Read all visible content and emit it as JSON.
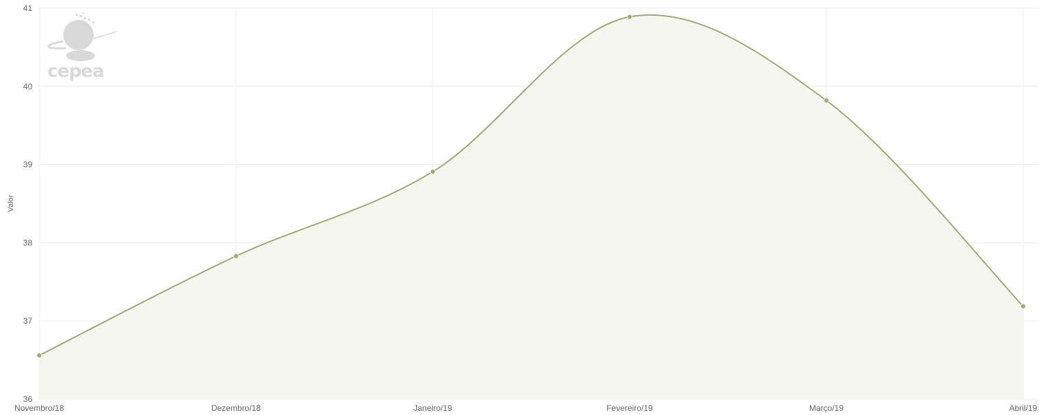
{
  "chart_data": {
    "type": "area",
    "smoothing": "spline",
    "title": "",
    "xlabel": "",
    "ylabel": "Valor",
    "categories": [
      "Novembro/18",
      "Dezembro/18",
      "Janeiro/19",
      "Fevereiro/19",
      "Março/19",
      "Abril/19"
    ],
    "series": [
      {
        "values": [
          36.56,
          37.83,
          38.91,
          40.89,
          39.82,
          37.19
        ]
      }
    ],
    "ylim": [
      36,
      41
    ],
    "yticks": [
      36,
      37,
      38,
      39,
      40,
      41
    ],
    "grid": true,
    "legend": "none",
    "colors": {
      "line": "#a3a87a",
      "fill": "#f5f6f0",
      "marker": "#a3a87a",
      "grid": "#ececec"
    }
  },
  "watermark": {
    "text": "CEPEA"
  }
}
